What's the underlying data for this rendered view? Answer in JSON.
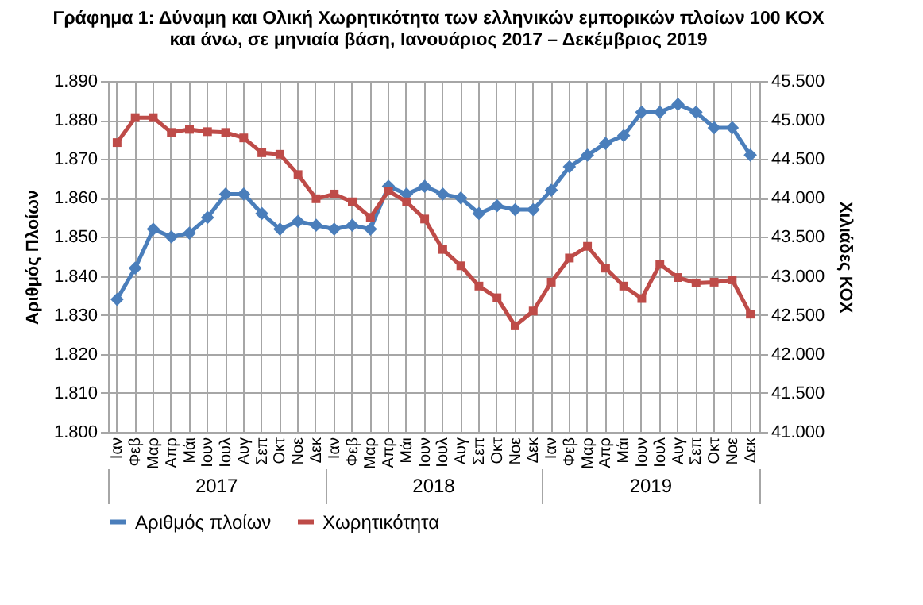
{
  "chart_data": {
    "type": "line",
    "title": "Γράφημα 1: Δύναμη και Ολική Χωρητικότητα των ελληνικών εμπορικών πλοίων 100 ΚΟΧ\nκαι άνω, σε μηνιαία βάση, Ιανουάριος 2017 – Δεκέμβριος 2019",
    "ylabel": "Αριθμός Πλοίων",
    "y2label": "Χιλιάδες ΚΟΧ",
    "categories": [
      "Ιαν",
      "Φεβ",
      "Μαρ",
      "Απρ",
      "Μάι",
      "Ιουν",
      "Ιουλ",
      "Αυγ",
      "Σεπ",
      "Οκτ",
      "Νοε",
      "Δεκ",
      "Ιαν",
      "Φεβ",
      "Μαρ",
      "Απρ",
      "Μάι",
      "Ιουν",
      "Ιουλ",
      "Αυγ",
      "Σεπ",
      "Οκτ",
      "Νοε",
      "Δεκ",
      "Ιαν",
      "Φεβ",
      "Μαρ",
      "Απρ",
      "Μάι",
      "Ιουν",
      "Ιουλ",
      "Αυγ",
      "Σεπ",
      "Οκτ",
      "Νοε",
      "Δεκ"
    ],
    "annotations": [
      "2017",
      "2018",
      "2019"
    ],
    "series": [
      {
        "name": "Αριθμός πλοίων",
        "color": "#4a7ebb",
        "marker": "diamond",
        "values": [
          1834,
          1842,
          1852,
          1850,
          1851,
          1855,
          1861,
          1861,
          1856,
          1852,
          1854,
          1853,
          1852,
          1853,
          1852,
          1863,
          1861,
          1863,
          1861,
          1860,
          1856,
          1858,
          1857,
          1857,
          1862,
          1868,
          1871,
          1874,
          1876,
          1882,
          1882,
          1884,
          1882,
          1878,
          1878,
          1871
        ]
      },
      {
        "name": "Χωρητικότητα",
        "color": "#be4b48",
        "marker": "square",
        "axis": "y2",
        "values": [
          44710,
          45030,
          45030,
          44840,
          44880,
          44850,
          44840,
          44770,
          44580,
          44560,
          44300,
          43990,
          44050,
          43950,
          43750,
          44090,
          43950,
          43730,
          43340,
          43130,
          42870,
          42720,
          42360,
          42550,
          42920,
          43230,
          43380,
          43100,
          42870,
          42710,
          43150,
          42980,
          42910,
          42920,
          42950,
          42510
        ]
      }
    ],
    "ylim": [
      1800,
      1890
    ],
    "yticks": [
      {
        "value": 1800,
        "label": "1.800"
      },
      {
        "value": 1810,
        "label": "1.810"
      },
      {
        "value": 1820,
        "label": "1.820"
      },
      {
        "value": 1830,
        "label": "1.830"
      },
      {
        "value": 1840,
        "label": "1.840"
      },
      {
        "value": 1850,
        "label": "1.850"
      },
      {
        "value": 1860,
        "label": "1.860"
      },
      {
        "value": 1870,
        "label": "1.870"
      },
      {
        "value": 1880,
        "label": "1.880"
      },
      {
        "value": 1890,
        "label": "1.890"
      }
    ],
    "y2lim": [
      41000,
      45500
    ],
    "y2ticks": [
      {
        "value": 41000,
        "label": "41.000"
      },
      {
        "value": 41500,
        "label": "41.500"
      },
      {
        "value": 42000,
        "label": "42.000"
      },
      {
        "value": 42500,
        "label": "42.500"
      },
      {
        "value": 43000,
        "label": "43.000"
      },
      {
        "value": 43500,
        "label": "43.500"
      },
      {
        "value": 44000,
        "label": "44.000"
      },
      {
        "value": 44500,
        "label": "44.500"
      },
      {
        "value": 45000,
        "label": "45.000"
      },
      {
        "value": 45500,
        "label": "45.500"
      }
    ],
    "grid": true,
    "legend": "bottom",
    "line_style": "solid"
  }
}
